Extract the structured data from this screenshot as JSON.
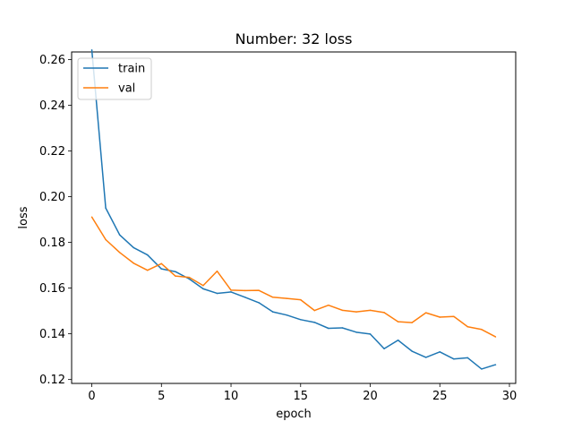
{
  "chart_data": {
    "type": "line",
    "title": "Number: 32 loss",
    "xlabel": "epoch",
    "ylabel": "loss",
    "xlim": [
      -1.45,
      30.45
    ],
    "ylim": [
      0.1183,
      0.2633
    ],
    "xticks": [
      0,
      5,
      10,
      15,
      20,
      25,
      30
    ],
    "yticks": [
      0.12,
      0.14,
      0.16,
      0.18,
      0.2,
      0.22,
      0.24,
      0.26
    ],
    "xtick_labels": [
      "0",
      "5",
      "10",
      "15",
      "20",
      "25",
      "30"
    ],
    "ytick_labels": [
      "0.12",
      "0.14",
      "0.16",
      "0.18",
      "0.20",
      "0.22",
      "0.24",
      "0.26"
    ],
    "grid": false,
    "legend_position": "upper-left",
    "x": [
      0,
      1,
      2,
      3,
      4,
      5,
      6,
      7,
      8,
      9,
      10,
      11,
      12,
      13,
      14,
      15,
      16,
      17,
      18,
      19,
      20,
      21,
      22,
      23,
      24,
      25,
      26,
      27,
      28,
      29
    ],
    "series": [
      {
        "name": "train",
        "color": "#1f77b4",
        "values": [
          0.2642,
          0.195,
          0.1833,
          0.1777,
          0.1745,
          0.1684,
          0.1672,
          0.164,
          0.1597,
          0.1577,
          0.1583,
          0.156,
          0.1536,
          0.1496,
          0.1482,
          0.1462,
          0.145,
          0.1424,
          0.1426,
          0.1407,
          0.1399,
          0.1335,
          0.1372,
          0.1324,
          0.1297,
          0.1321,
          0.129,
          0.1295,
          0.1246,
          0.1265
        ]
      },
      {
        "name": "val",
        "color": "#ff7f0e",
        "values": [
          0.1911,
          0.1812,
          0.1756,
          0.1709,
          0.1678,
          0.1707,
          0.1653,
          0.1647,
          0.1611,
          0.1674,
          0.1591,
          0.1589,
          0.159,
          0.156,
          0.1555,
          0.1549,
          0.1502,
          0.1525,
          0.1503,
          0.1496,
          0.1503,
          0.1493,
          0.1453,
          0.1449,
          0.1492,
          0.1473,
          0.1476,
          0.1431,
          0.1419,
          0.1387
        ]
      }
    ]
  }
}
